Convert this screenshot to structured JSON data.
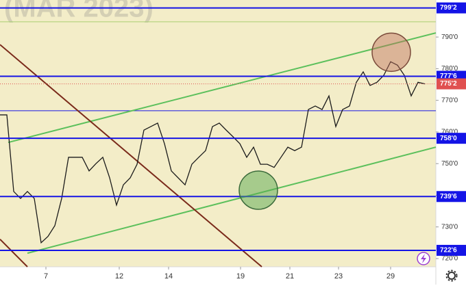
{
  "chart_data": {
    "type": "line",
    "title": "(MAR 2023)",
    "x": [
      0,
      1,
      2,
      3,
      4,
      5,
      6,
      7,
      8,
      9,
      10,
      11,
      12,
      13,
      14,
      15,
      16,
      17,
      18,
      19,
      20,
      21,
      22,
      23,
      24,
      25,
      26,
      27,
      28,
      29,
      30,
      31,
      32,
      33,
      34,
      35,
      36,
      37,
      38,
      39,
      40,
      41,
      42,
      43,
      44,
      45,
      46,
      47,
      48,
      49,
      50,
      51,
      52,
      53,
      54,
      55,
      56,
      57,
      58,
      59,
      60,
      61,
      62
    ],
    "series": [
      {
        "color": "#1a1a1a",
        "values": [
          765.4,
          765.4,
          741.2,
          739.0,
          741.2,
          739.0,
          725.0,
          727,
          730.4,
          739.0,
          752.0,
          752.0,
          752.0,
          747.7,
          750,
          752.0,
          745.5,
          736.9,
          743.3,
          745.5,
          749.8,
          760.6,
          761.7,
          762.8,
          756.3,
          747.7,
          745.5,
          743.3,
          749.8,
          752.0,
          754.1,
          761.7,
          762.8,
          760.6,
          758.5,
          756.3,
          752.0,
          755.2,
          749.8,
          749.8,
          748.8,
          752.0,
          755.2,
          754.1,
          755.2,
          767.1,
          768.2,
          767.1,
          771.4,
          761.7,
          767.1,
          768.2,
          775.7,
          779.0,
          774.7,
          775.7,
          777.9,
          782.2,
          781.1,
          777.9,
          771.4,
          775.7,
          775.2
        ]
      }
    ],
    "xlim": [
      0,
      63.6
    ],
    "xticks": [
      {
        "value": 6.7,
        "label": "7"
      },
      {
        "value": 17.4,
        "label": "12"
      },
      {
        "value": 24.6,
        "label": "14"
      },
      {
        "value": 35.1,
        "label": "19"
      },
      {
        "value": 42.3,
        "label": "21"
      },
      {
        "value": 49.4,
        "label": "23"
      },
      {
        "value": 57,
        "label": "29"
      }
    ],
    "ylim": [
      717.4,
      801.7
    ],
    "yticks": [
      {
        "value": 720,
        "label": "720'0"
      },
      {
        "value": 730,
        "label": "730'0"
      },
      {
        "value": 740,
        "label": "740'0"
      },
      {
        "value": 750,
        "label": "750'0"
      },
      {
        "value": 760,
        "label": "760'0"
      },
      {
        "value": 770,
        "label": "770'0"
      },
      {
        "value": 780,
        "label": "780'0"
      },
      {
        "value": 790,
        "label": "790'0"
      }
    ],
    "levels": [
      {
        "value": 799.2,
        "label": "799'2"
      },
      {
        "value": 777.6,
        "label": "777'6"
      },
      {
        "value": 758.0,
        "label": "758'0"
      },
      {
        "value": 739.6,
        "label": "739'6"
      },
      {
        "value": 722.6,
        "label": "722'6"
      }
    ],
    "level_color": "#1414e6",
    "thin_lines": [
      {
        "value": 766.7,
        "color": "#1414e6"
      },
      {
        "value": 794.8,
        "color": "#a8d070"
      }
    ],
    "current_price": {
      "value": 775.2,
      "label": "775'2",
      "color": "#e05050"
    },
    "trendlines": [
      {
        "color": "#5cc05c",
        "x": [
          1.2,
          63.6
        ],
        "y": [
          756.7,
          791.3
        ]
      },
      {
        "color": "#5cc05c",
        "x": [
          4.0,
          63.6
        ],
        "y": [
          721.7,
          755.2
        ]
      },
      {
        "color": "#7a2a1a",
        "x": [
          0,
          38.2
        ],
        "y": [
          787.6,
          717.4
        ]
      },
      {
        "color": "#7a2a1a",
        "x": [
          0,
          4.0
        ],
        "y": [
          726.1,
          717.4
        ]
      }
    ],
    "circles": [
      {
        "color": "rgba(190,110,90,0.45)",
        "stroke": "#7a4a3a",
        "x": 57.1,
        "y": 785.2
      },
      {
        "color": "rgba(90,170,80,0.5)",
        "stroke": "#3a6a3a",
        "x": 37.7,
        "y": 741.6
      }
    ]
  }
}
